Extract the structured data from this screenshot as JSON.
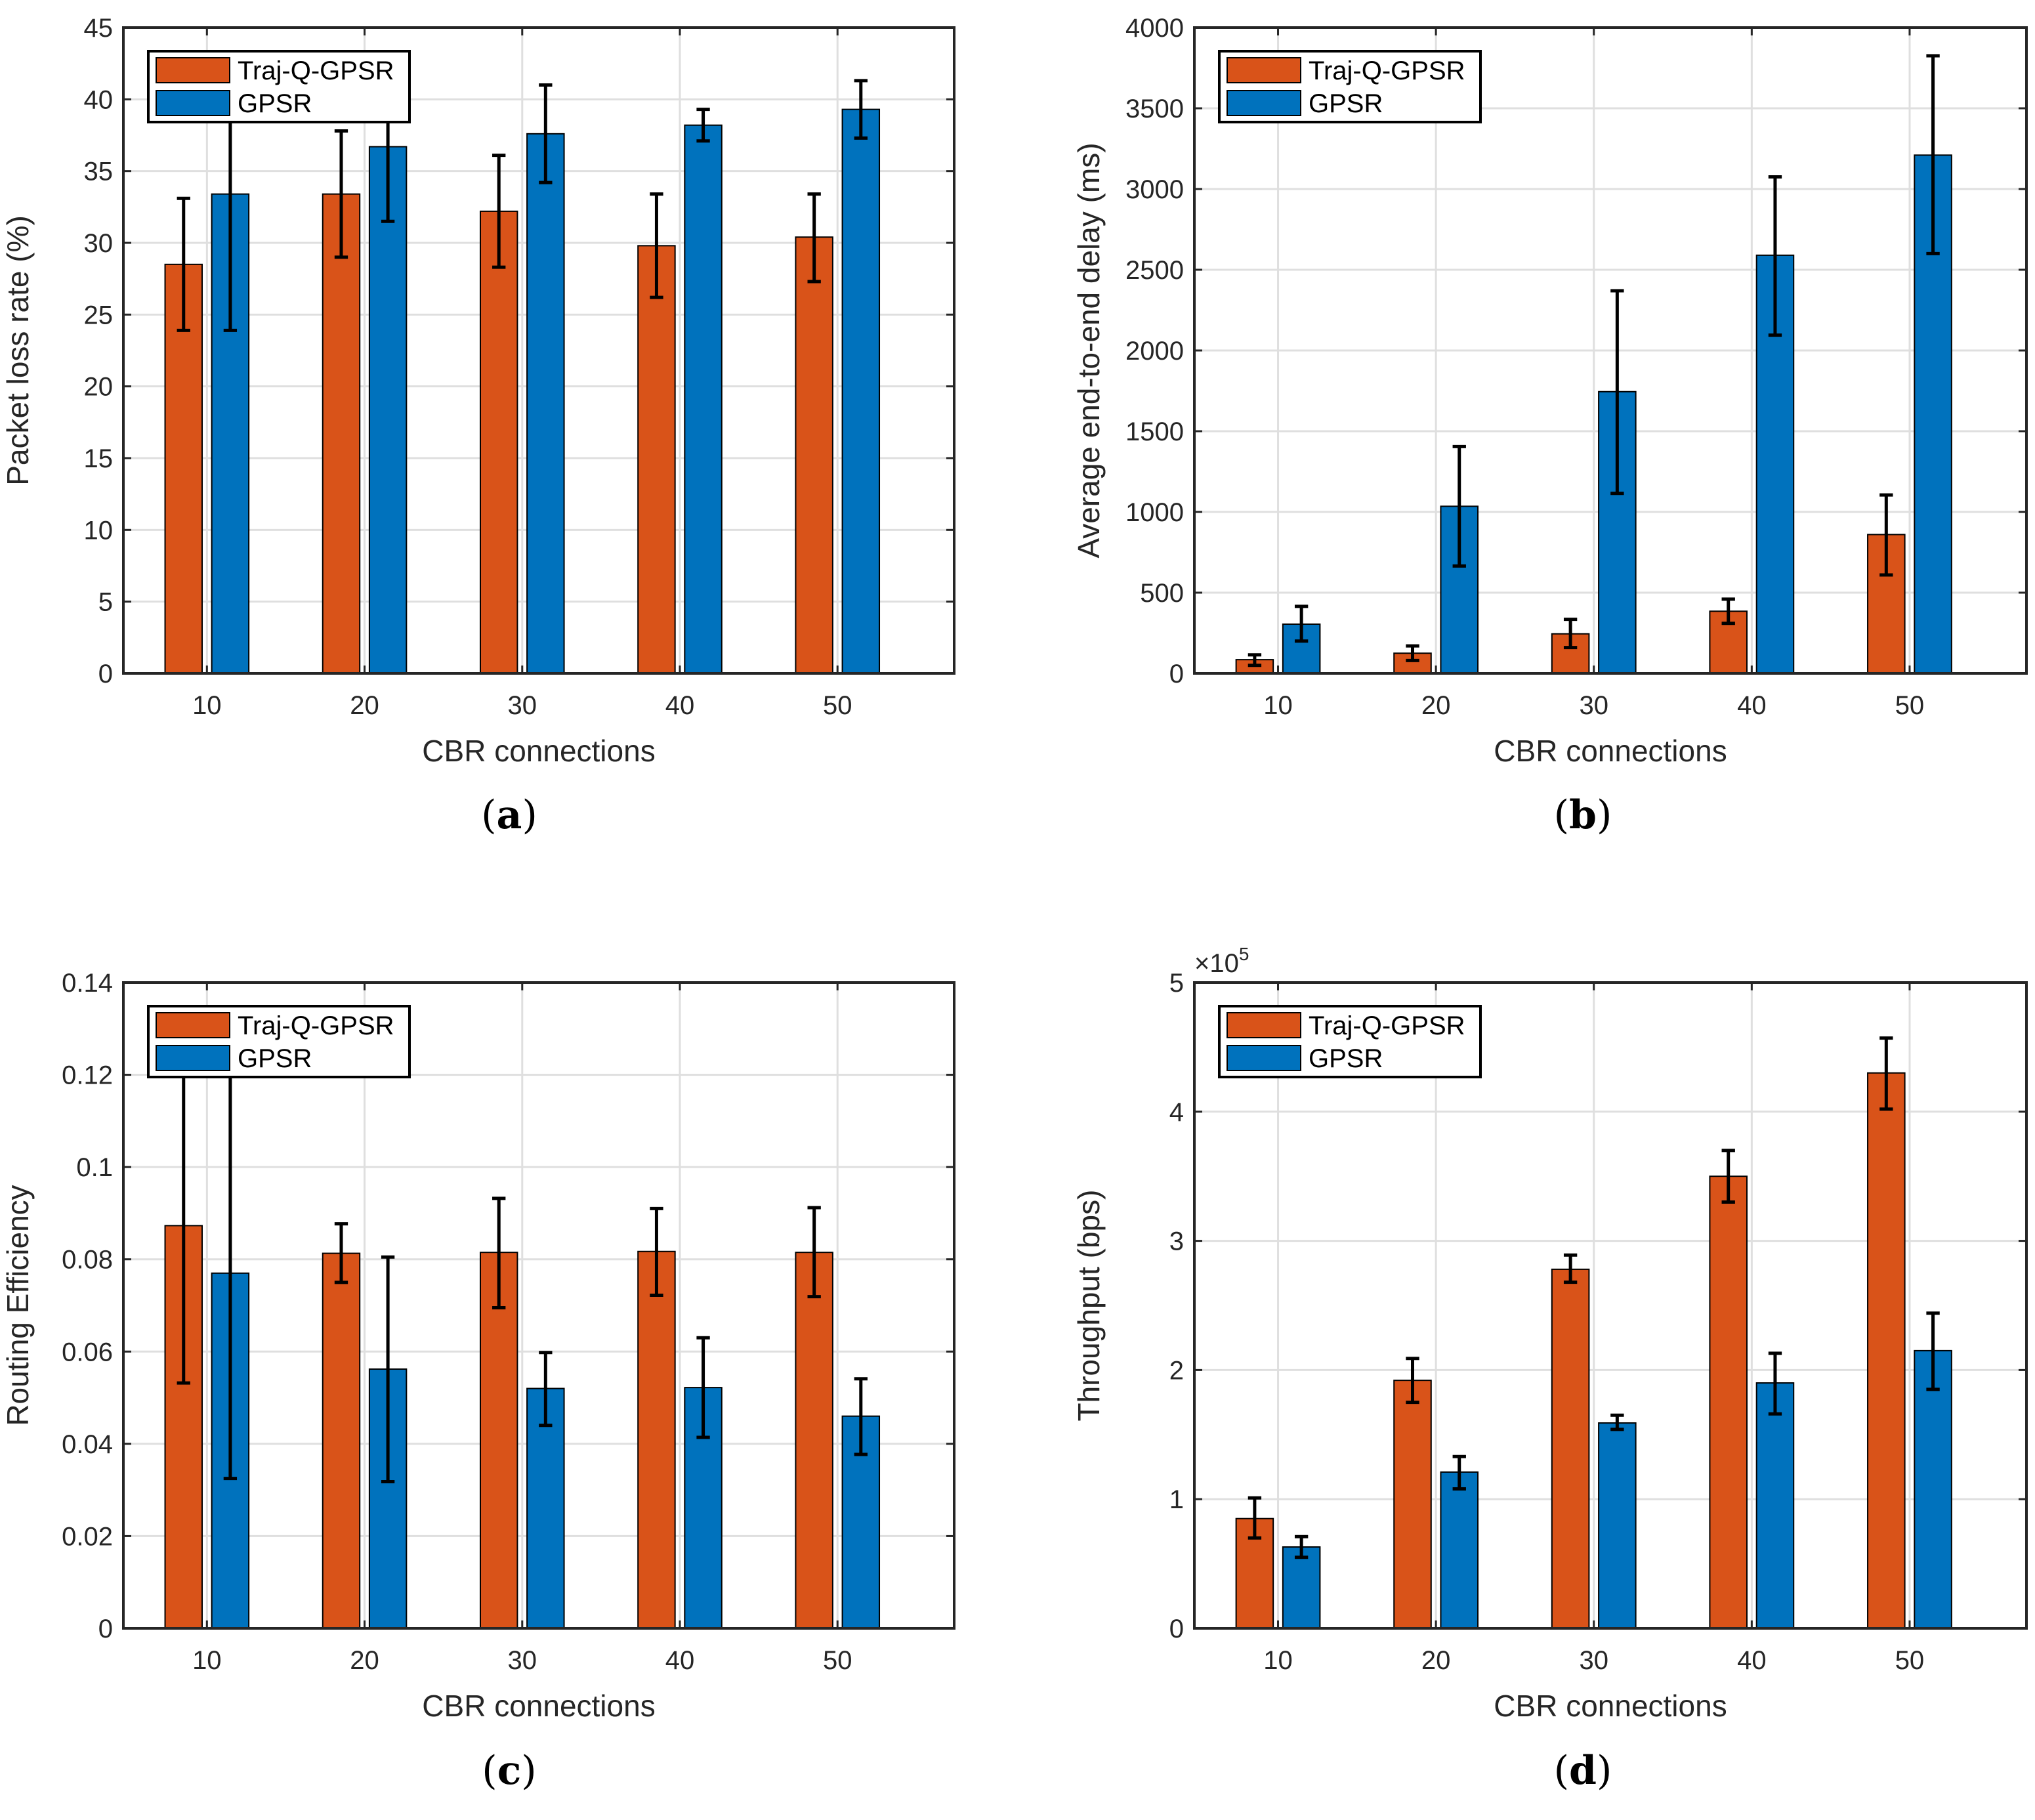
{
  "colors": {
    "traj_q_gpsr": "#D95319",
    "gpsr": "#0072BD",
    "grid": "#dfdfdf",
    "axis": "#262626",
    "errorbar": "#000000"
  },
  "chart_data": [
    {
      "id": "a",
      "type": "bar",
      "caption": "a",
      "xlabel": "CBR connections",
      "ylabel": "Packet loss rate (%)",
      "categories": [
        "10",
        "20",
        "30",
        "40",
        "50"
      ],
      "ylim": [
        0,
        45
      ],
      "yticks": [
        "0",
        "5",
        "10",
        "15",
        "20",
        "25",
        "30",
        "35",
        "40",
        "45"
      ],
      "ytick_values": [
        0,
        5,
        10,
        15,
        20,
        25,
        30,
        35,
        40,
        45
      ],
      "exponent_label": "",
      "grid": true,
      "legend_position": "top-left",
      "series": [
        {
          "name": "Traj-Q-GPSR",
          "color": "#D95319",
          "values": [
            28.5,
            33.4,
            32.2,
            29.8,
            30.4
          ],
          "err_low": [
            23.9,
            29.0,
            28.3,
            26.2,
            27.3
          ],
          "err_high": [
            33.1,
            37.8,
            36.1,
            33.4,
            33.4
          ]
        },
        {
          "name": "GPSR",
          "color": "#0072BD",
          "values": [
            33.4,
            36.7,
            37.6,
            38.2,
            39.3
          ],
          "err_low": [
            23.9,
            31.5,
            34.2,
            37.1,
            37.3
          ],
          "err_high": [
            43.0,
            41.9,
            41.0,
            39.3,
            41.3
          ]
        }
      ]
    },
    {
      "id": "b",
      "type": "bar",
      "caption": "b",
      "xlabel": "CBR connections",
      "ylabel": "Average end-to-end delay (ms)",
      "categories": [
        "10",
        "20",
        "30",
        "40",
        "50"
      ],
      "ylim": [
        0,
        4000
      ],
      "yticks": [
        "0",
        "500",
        "1000",
        "1500",
        "2000",
        "2500",
        "3000",
        "3500",
        "4000"
      ],
      "ytick_values": [
        0,
        500,
        1000,
        1500,
        2000,
        2500,
        3000,
        3500,
        4000
      ],
      "exponent_label": "",
      "grid": true,
      "legend_position": "top-left",
      "series": [
        {
          "name": "Traj-Q-GPSR",
          "color": "#D95319",
          "values": [
            85,
            125,
            245,
            385,
            860
          ],
          "err_low": [
            50,
            80,
            160,
            310,
            610
          ],
          "err_high": [
            115,
            170,
            335,
            460,
            1105
          ]
        },
        {
          "name": "GPSR",
          "color": "#0072BD",
          "values": [
            305,
            1035,
            1745,
            2590,
            3210
          ],
          "err_low": [
            200,
            665,
            1115,
            2095,
            2600
          ],
          "err_high": [
            415,
            1405,
            2370,
            3075,
            3825
          ]
        }
      ]
    },
    {
      "id": "c",
      "type": "bar",
      "caption": "c",
      "xlabel": "CBR connections",
      "ylabel": "Routing Efficiency",
      "categories": [
        "10",
        "20",
        "30",
        "40",
        "50"
      ],
      "ylim": [
        0,
        0.14
      ],
      "yticks": [
        "0",
        "0.02",
        "0.04",
        "0.06",
        "0.08",
        "0.1",
        "0.12",
        "0.14"
      ],
      "ytick_values": [
        0,
        0.02,
        0.04,
        0.06,
        0.08,
        0.1,
        0.12,
        0.14
      ],
      "exponent_label": "",
      "grid": true,
      "legend_position": "top-left",
      "series": [
        {
          "name": "Traj-Q-GPSR",
          "color": "#D95319",
          "values": [
            0.0873,
            0.0813,
            0.0815,
            0.0817,
            0.0815
          ],
          "err_low": [
            0.0532,
            0.075,
            0.0695,
            0.0722,
            0.0719
          ],
          "err_high": [
            0.1214,
            0.0877,
            0.0932,
            0.091,
            0.0912
          ]
        },
        {
          "name": "GPSR",
          "color": "#0072BD",
          "values": [
            0.077,
            0.0562,
            0.052,
            0.0522,
            0.046
          ],
          "err_low": [
            0.0325,
            0.0318,
            0.044,
            0.0414,
            0.0377
          ],
          "err_high": [
            0.1215,
            0.0805,
            0.0598,
            0.063,
            0.0541
          ]
        }
      ]
    },
    {
      "id": "d",
      "type": "bar",
      "caption": "d",
      "xlabel": "CBR connections",
      "ylabel": "Throughput (bps)",
      "categories": [
        "10",
        "20",
        "30",
        "40",
        "50"
      ],
      "ylim": [
        0,
        500000
      ],
      "yticks": [
        "0",
        "1",
        "2",
        "3",
        "4",
        "5"
      ],
      "ytick_values": [
        0,
        100000,
        200000,
        300000,
        400000,
        500000
      ],
      "exponent_label": "×10",
      "exponent_power": "5",
      "grid": true,
      "legend_position": "top-left",
      "series": [
        {
          "name": "Traj-Q-GPSR",
          "color": "#D95319",
          "values": [
            85000,
            192000,
            278000,
            350000,
            430000
          ],
          "err_low": [
            70000,
            175000,
            268000,
            330000,
            402000
          ],
          "err_high": [
            101000,
            209000,
            289000,
            370000,
            457000
          ]
        },
        {
          "name": "GPSR",
          "color": "#0072BD",
          "values": [
            63000,
            121000,
            159000,
            190000,
            215000
          ],
          "err_low": [
            55000,
            108000,
            154000,
            166000,
            185000
          ],
          "err_high": [
            71000,
            133000,
            165000,
            213000,
            244000
          ]
        }
      ]
    }
  ]
}
